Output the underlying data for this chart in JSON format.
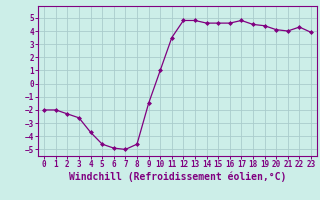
{
  "x": [
    0,
    1,
    2,
    3,
    4,
    5,
    6,
    7,
    8,
    9,
    10,
    11,
    12,
    13,
    14,
    15,
    16,
    17,
    18,
    19,
    20,
    21,
    22,
    23
  ],
  "y": [
    -2.0,
    -2.0,
    -2.3,
    -2.6,
    -3.7,
    -4.6,
    -4.9,
    -5.0,
    -4.6,
    -1.5,
    1.0,
    3.5,
    4.8,
    4.8,
    4.6,
    4.6,
    4.6,
    4.8,
    4.5,
    4.4,
    4.1,
    4.0,
    4.3,
    3.9
  ],
  "line_color": "#800080",
  "marker": "D",
  "marker_size": 2.0,
  "bg_color": "#cceee8",
  "grid_color": "#aacccc",
  "xlabel": "Windchill (Refroidissement éolien,°C)",
  "xlim": [
    -0.5,
    23.5
  ],
  "ylim": [
    -5.5,
    5.9
  ],
  "yticks": [
    -5,
    -4,
    -3,
    -2,
    -1,
    0,
    1,
    2,
    3,
    4,
    5
  ],
  "xticks": [
    0,
    1,
    2,
    3,
    4,
    5,
    6,
    7,
    8,
    9,
    10,
    11,
    12,
    13,
    14,
    15,
    16,
    17,
    18,
    19,
    20,
    21,
    22,
    23
  ],
  "tick_fontsize": 5.5,
  "xlabel_fontsize": 7.0,
  "tick_color": "#800080",
  "spine_color": "#800080",
  "line_width": 0.9
}
